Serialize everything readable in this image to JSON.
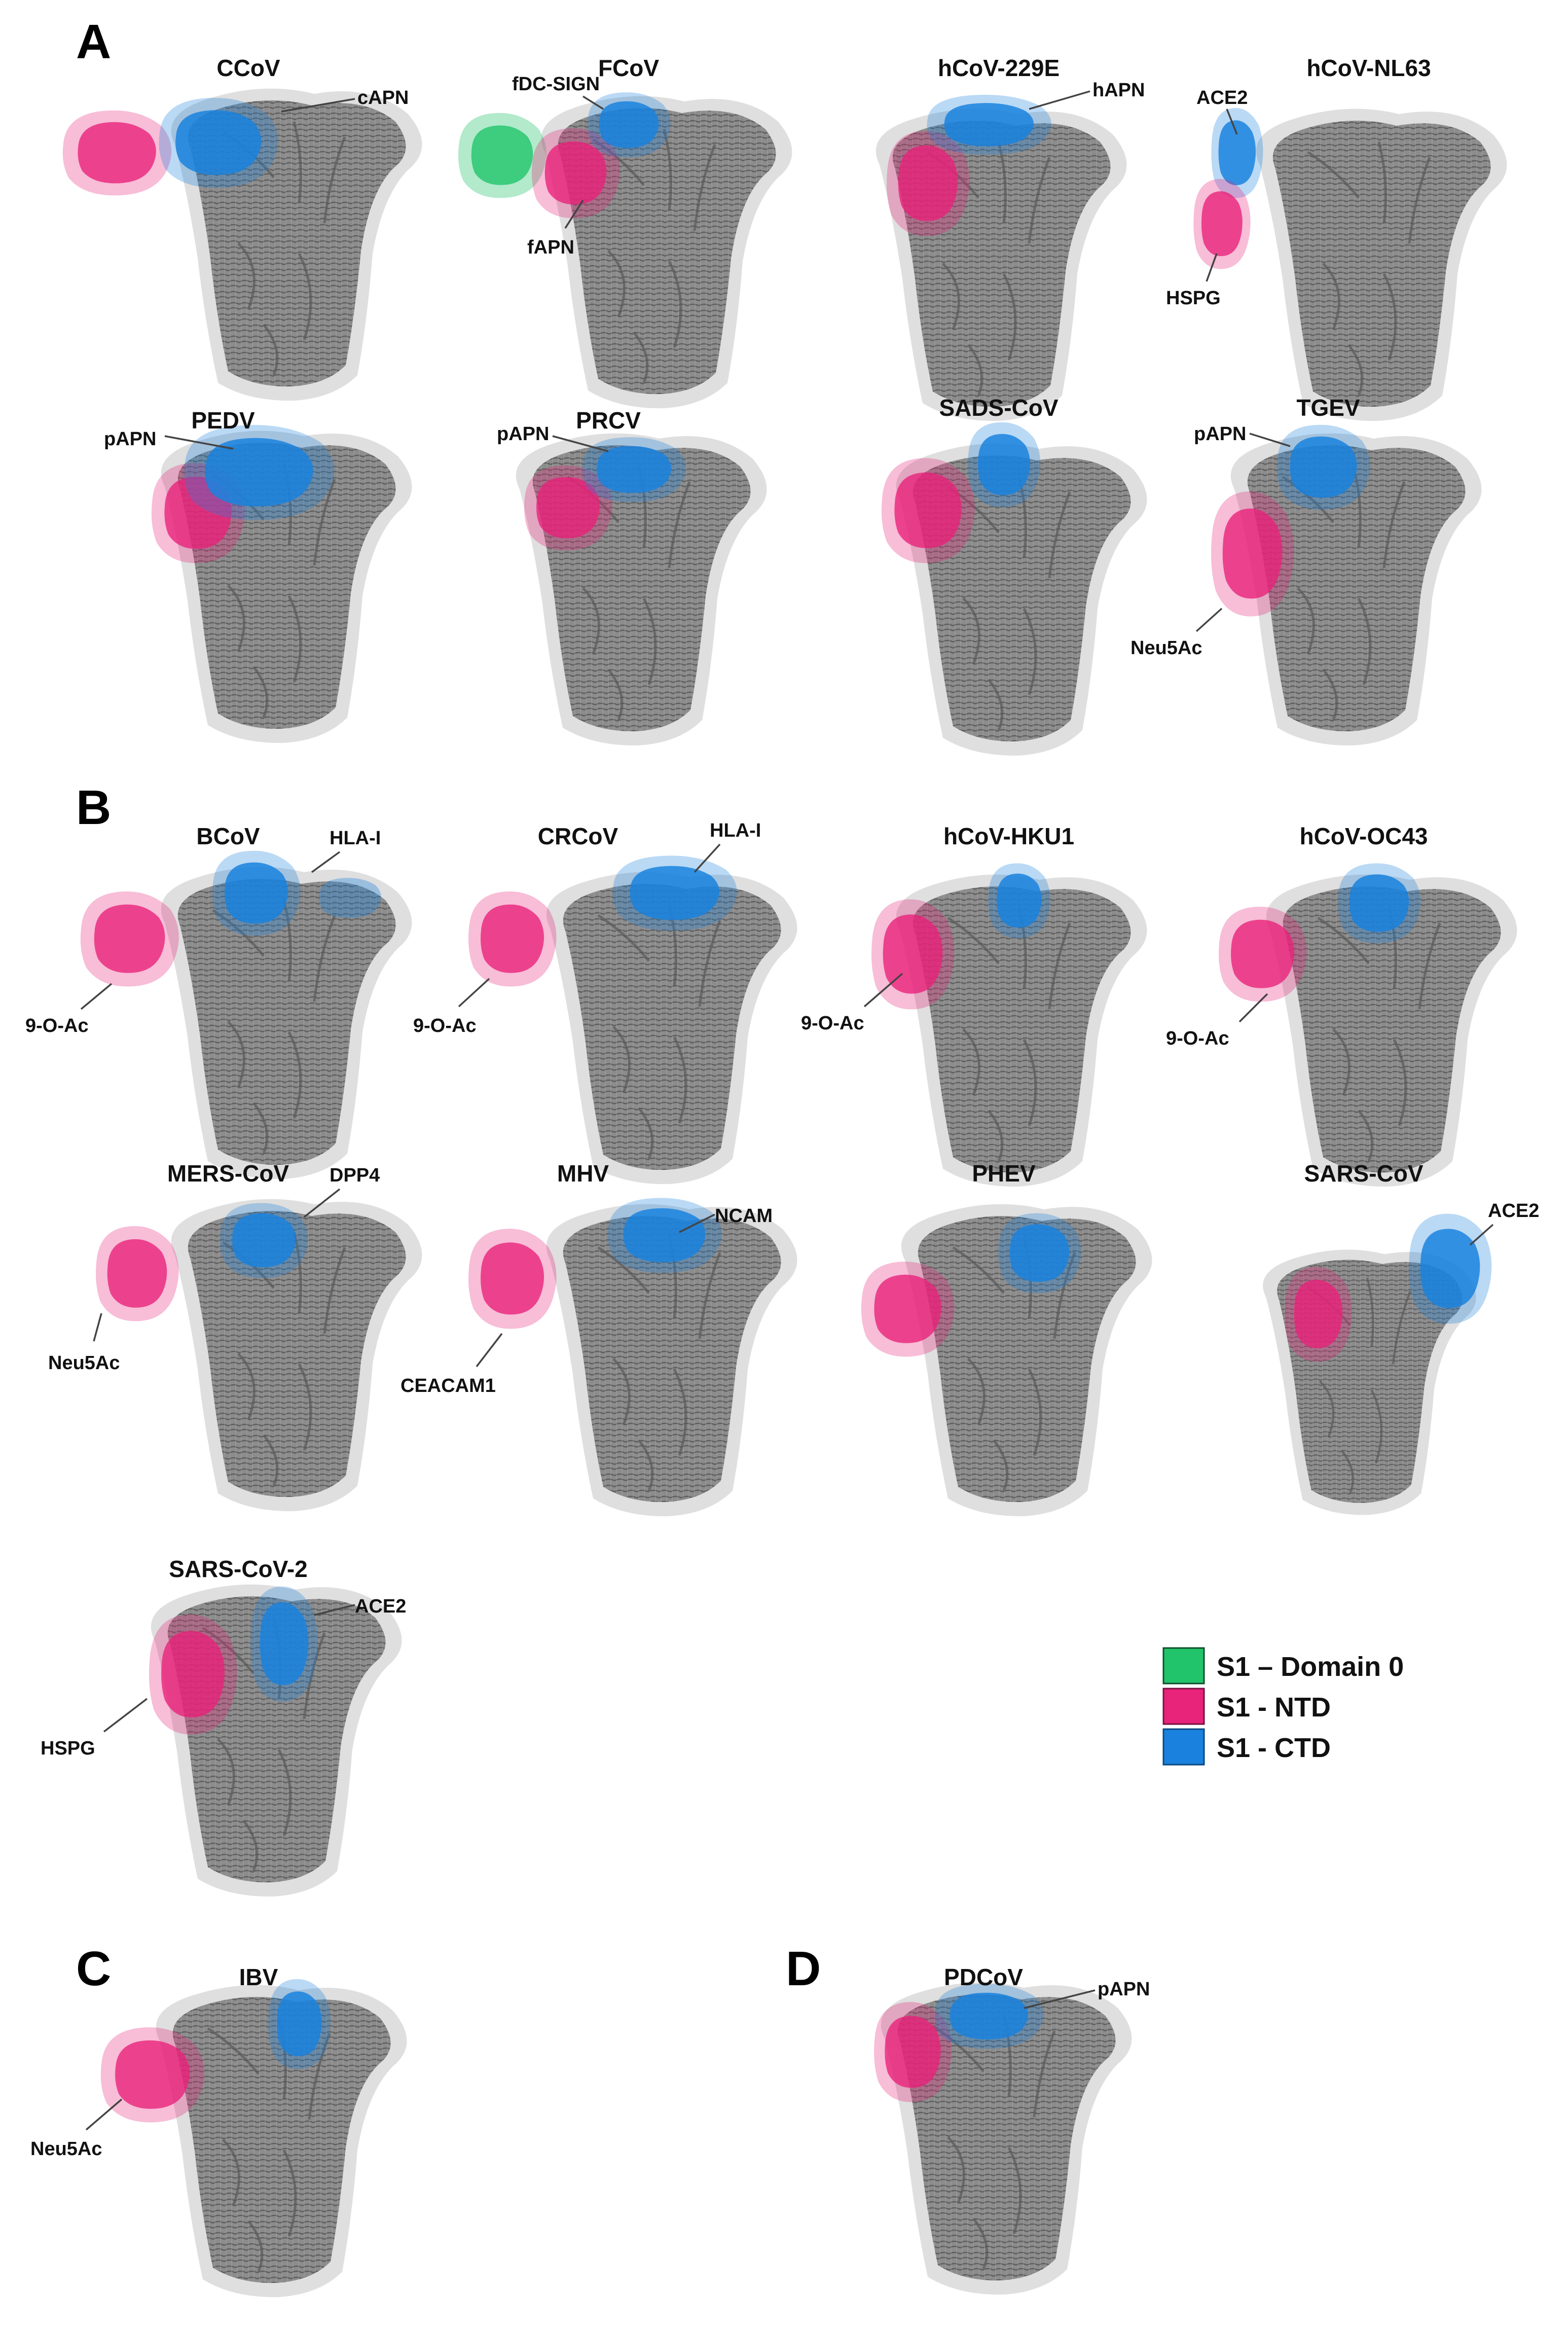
{
  "panels": [
    {
      "letter": "A",
      "structures": [
        {
          "title": "CCoV",
          "receptors": [
            "cAPN"
          ]
        },
        {
          "title": "FCoV",
          "receptors": [
            "fDC-SIGN",
            "fAPN"
          ]
        },
        {
          "title": "hCoV-229E",
          "receptors": [
            "hAPN"
          ]
        },
        {
          "title": "hCoV-NL63",
          "receptors": [
            "ACE2",
            "HSPG"
          ]
        },
        {
          "title": "PEDV",
          "receptors": [
            "pAPN"
          ]
        },
        {
          "title": "PRCV",
          "receptors": [
            "pAPN"
          ]
        },
        {
          "title": "SADS-CoV",
          "receptors": []
        },
        {
          "title": "TGEV",
          "receptors": [
            "pAPN",
            "Neu5Ac"
          ]
        }
      ]
    },
    {
      "letter": "B",
      "structures": [
        {
          "title": "BCoV",
          "receptors": [
            "HLA-I",
            "9-O-Ac"
          ]
        },
        {
          "title": "CRCoV",
          "receptors": [
            "HLA-I",
            "9-O-Ac"
          ]
        },
        {
          "title": "hCoV-HKU1",
          "receptors": [
            "9-O-Ac"
          ]
        },
        {
          "title": "hCoV-OC43",
          "receptors": [
            "9-O-Ac"
          ]
        },
        {
          "title": "MERS-CoV",
          "receptors": [
            "DPP4",
            "Neu5Ac"
          ]
        },
        {
          "title": "MHV",
          "receptors": [
            "NCAM",
            "CEACAM1"
          ]
        },
        {
          "title": "PHEV",
          "receptors": []
        },
        {
          "title": "SARS-CoV",
          "receptors": [
            "ACE2"
          ]
        },
        {
          "title": "SARS-CoV-2",
          "receptors": [
            "ACE2",
            "HSPG"
          ]
        }
      ]
    },
    {
      "letter": "C",
      "structures": [
        {
          "title": "IBV",
          "receptors": [
            "Neu5Ac"
          ]
        }
      ]
    },
    {
      "letter": "D",
      "structures": [
        {
          "title": "PDCoV",
          "receptors": [
            "pAPN"
          ]
        }
      ]
    }
  ],
  "legend": [
    {
      "label": "S1 – Domain 0",
      "color": "#21c46a"
    },
    {
      "label": "S1 - NTD",
      "color": "#e8237a"
    },
    {
      "label": "S1 - CTD",
      "color": "#1a82de"
    }
  ],
  "colors": {
    "trimer": "#8a8a8a",
    "trimer_halo": "#d6d6d6",
    "domain0": "#21c46a",
    "ntd": "#e8237a",
    "ctd": "#1a82de"
  }
}
